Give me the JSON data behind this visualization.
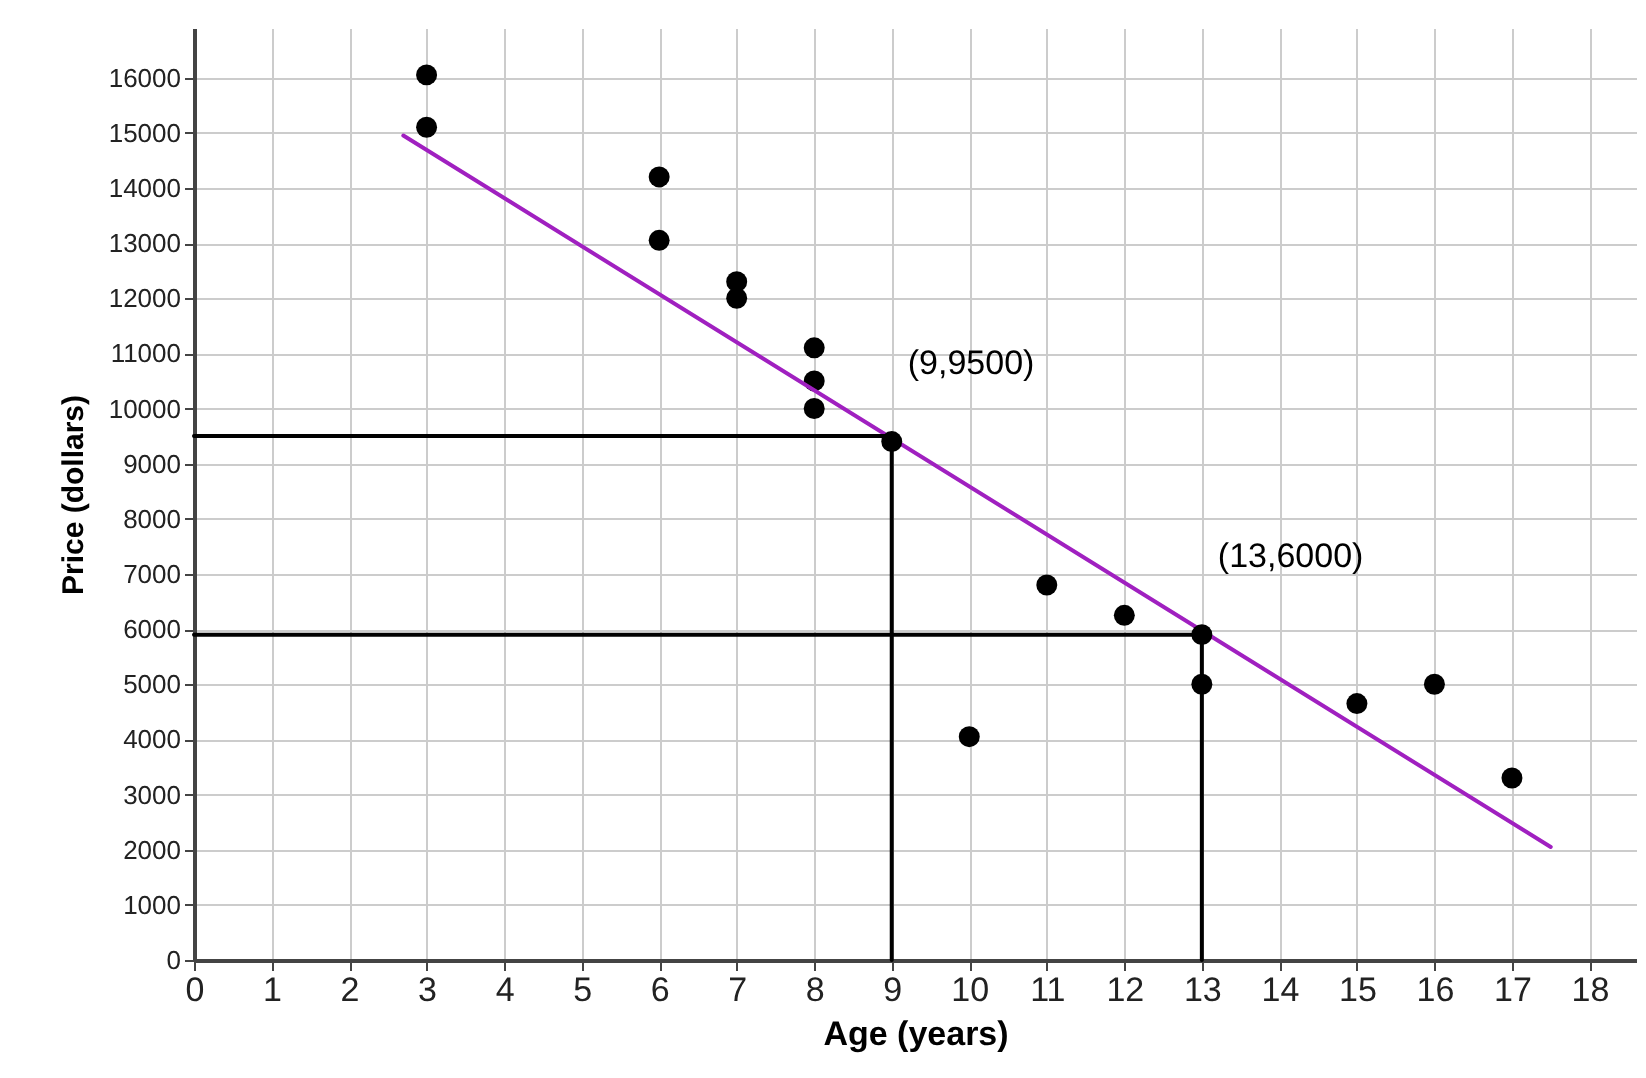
{
  "chart_data": {
    "type": "scatter",
    "xlabel": "Age  (years)",
    "ylabel": "Price (dollars)",
    "xlim": [
      0,
      18.6
    ],
    "ylim": [
      0,
      16900
    ],
    "xticks": [
      0,
      1,
      2,
      3,
      4,
      5,
      6,
      7,
      8,
      9,
      10,
      11,
      12,
      13,
      14,
      15,
      16,
      17,
      18
    ],
    "yticks": [
      0,
      1000,
      2000,
      3000,
      4000,
      5000,
      6000,
      7000,
      8000,
      9000,
      10000,
      11000,
      12000,
      13000,
      14000,
      15000,
      16000
    ],
    "grid": true,
    "marker": "circle",
    "series": [
      {
        "color": "#000000",
        "x": [
          3,
          3,
          6,
          6,
          7,
          7,
          8,
          8,
          8,
          10,
          11,
          12,
          13,
          15,
          16,
          17
        ],
        "values": [
          16050,
          15100,
          14200,
          13050,
          12300,
          12000,
          11100,
          10500,
          10000,
          4050,
          6800,
          6250,
          5000,
          4650,
          5000,
          3300
        ]
      },
      {
        "type": "line",
        "marker": "none",
        "color": "#a020c0",
        "x": [
          2.7,
          17.5
        ],
        "values": [
          14950,
          2050
        ]
      },
      {
        "type": "line",
        "marker": "none",
        "color": "#000000",
        "x": [
          0,
          9
        ],
        "values": [
          9500,
          9500
        ]
      },
      {
        "type": "line",
        "marker": "none",
        "color": "#000000",
        "x": [
          9,
          9
        ],
        "values": [
          9500,
          0
        ]
      },
      {
        "type": "line",
        "marker": "none",
        "color": "#000000",
        "x": [
          0,
          13
        ],
        "values": [
          5900,
          5900
        ]
      },
      {
        "type": "line",
        "marker": "none",
        "color": "#000000",
        "x": [
          13,
          13
        ],
        "values": [
          5900,
          0
        ]
      },
      {
        "color": "#000000",
        "x": [
          9,
          13
        ],
        "values": [
          9400,
          5900
        ]
      }
    ],
    "annotations": [
      {
        "text": "(9,9500)",
        "x": 9,
        "y": 9500
      },
      {
        "text": "(13,6000)",
        "x": 13,
        "y": 6000
      }
    ]
  }
}
